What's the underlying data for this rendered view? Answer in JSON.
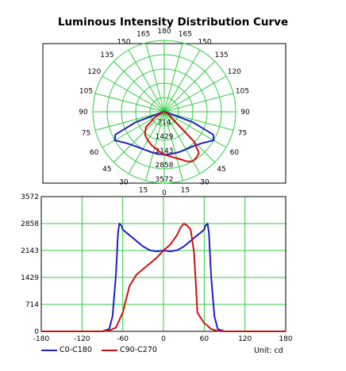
{
  "colors": {
    "grid": "#2ecc40",
    "c0": "#1f1fc8",
    "c90": "#d01010",
    "frame": "#000000"
  },
  "chart_data": [
    {
      "type": "polar",
      "title": "Luminous Intensity Distribution Curve",
      "angle_labels": [
        "180",
        "165",
        "150",
        "135",
        "120",
        "105",
        "90",
        "75",
        "60",
        "45",
        "30",
        "15",
        "0"
      ],
      "radial_labels": [
        "714",
        "1429",
        "2143",
        "2858",
        "3572"
      ],
      "r_max": 3572,
      "series": [
        {
          "name": "C0-C180",
          "angles": [
            -90,
            -80,
            -70,
            -65,
            -60,
            -50,
            -40,
            -30,
            -20,
            -10,
            0,
            10,
            20,
            30,
            40,
            50,
            60,
            65,
            70,
            80,
            90
          ],
          "values": [
            0,
            60,
            1500,
            2700,
            2858,
            2450,
            2250,
            2150,
            2120,
            2140,
            2143,
            2140,
            2150,
            2170,
            2250,
            2450,
            2858,
            2700,
            1500,
            60,
            0
          ]
        },
        {
          "name": "C90-C270",
          "angles": [
            -90,
            -80,
            -70,
            -60,
            -50,
            -40,
            -30,
            -20,
            -10,
            0,
            10,
            20,
            25,
            30,
            35,
            40,
            45,
            50,
            55,
            60,
            70,
            80,
            90
          ],
          "values": [
            0,
            20,
            100,
            500,
            1200,
            1500,
            1650,
            1800,
            1950,
            2143,
            2300,
            2550,
            2750,
            2858,
            2800,
            2700,
            2100,
            500,
            350,
            220,
            60,
            10,
            0
          ]
        }
      ]
    },
    {
      "type": "line",
      "xlim": [
        -180,
        180
      ],
      "ylim": [
        0,
        3572
      ],
      "xticks": [
        "-180",
        "-120",
        "-60",
        "0",
        "60",
        "120",
        "180"
      ],
      "yticks": [
        "0",
        "714",
        "1429",
        "2143",
        "2858",
        "3572"
      ],
      "unit_label": "Unit: cd",
      "series": [
        {
          "name": "C0-C180",
          "x": [
            -180,
            -90,
            -80,
            -75,
            -70,
            -67,
            -65,
            -62,
            -60,
            -55,
            -50,
            -40,
            -30,
            -20,
            -10,
            0,
            10,
            20,
            30,
            40,
            50,
            55,
            60,
            62,
            65,
            67,
            70,
            75,
            80,
            90,
            180
          ],
          "y": [
            0,
            0,
            60,
            400,
            1500,
            2600,
            2858,
            2800,
            2700,
            2620,
            2550,
            2400,
            2250,
            2150,
            2120,
            2143,
            2120,
            2150,
            2250,
            2400,
            2550,
            2620,
            2700,
            2800,
            2858,
            2600,
            1500,
            400,
            60,
            0,
            0
          ]
        },
        {
          "name": "C90-C270",
          "x": [
            -180,
            -90,
            -80,
            -70,
            -60,
            -55,
            -50,
            -40,
            -30,
            -20,
            -10,
            0,
            10,
            20,
            25,
            30,
            35,
            40,
            45,
            50,
            55,
            60,
            65,
            70,
            80,
            90,
            180
          ],
          "y": [
            0,
            0,
            20,
            100,
            500,
            850,
            1200,
            1500,
            1650,
            1800,
            1950,
            2143,
            2300,
            2550,
            2750,
            2858,
            2800,
            2700,
            2100,
            500,
            350,
            220,
            150,
            60,
            10,
            0,
            0
          ]
        }
      ]
    }
  ]
}
